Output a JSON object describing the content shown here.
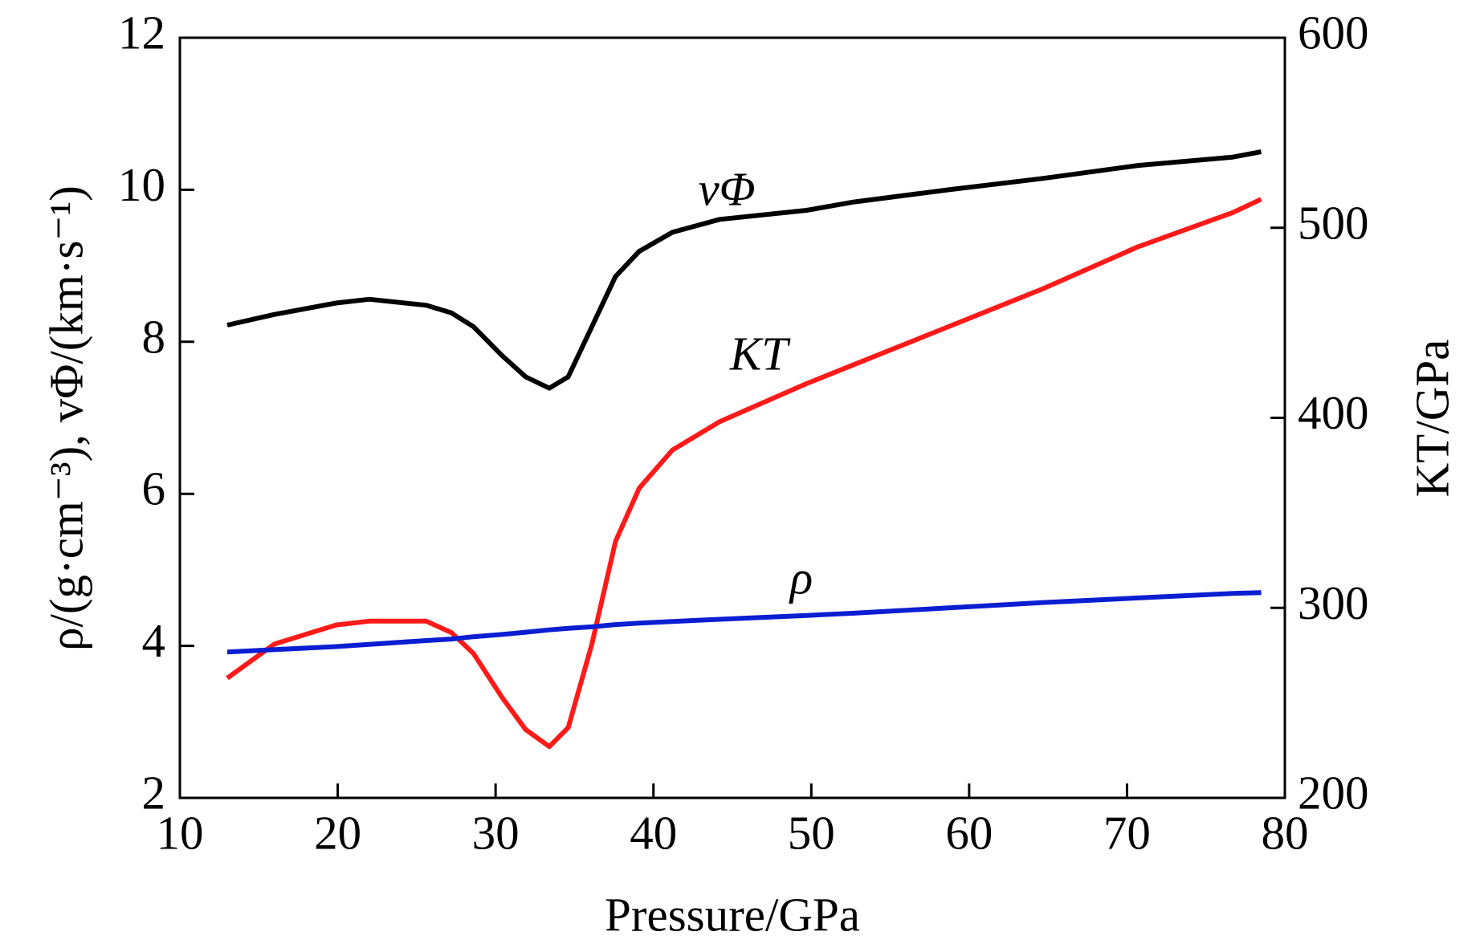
{
  "chart_data": {
    "type": "line",
    "xlabel": "Pressure/GPa",
    "ylabel": "ρ/(g·cm⁻³), vΦ/(km·s⁻¹)",
    "y2label": "KT/GPa",
    "x": [
      13,
      16,
      19.9,
      22,
      25.6,
      27.2,
      28.6,
      30.4,
      31.9,
      33.4,
      34.6,
      36.1,
      37.6,
      39.1,
      41.2,
      44.2,
      49.7,
      52.7,
      58.7,
      64.7,
      70.7,
      76.7,
      78.5
    ],
    "series": [
      {
        "name": "vΦ",
        "color": "#000000",
        "values": [
          8.22,
          8.36,
          8.51,
          8.56,
          8.48,
          8.38,
          8.2,
          7.82,
          7.54,
          7.39,
          7.54,
          8.2,
          8.86,
          9.19,
          9.44,
          9.61,
          9.73,
          9.84,
          10.0,
          10.15,
          10.32,
          10.43,
          10.5
        ]
      },
      {
        "name": "KT",
        "color": "#ff1a1a",
        "axis": "y2",
        "values": [
          263,
          281,
          291,
          293,
          293,
          287,
          276,
          253,
          236,
          227,
          237,
          281,
          335,
          363,
          383,
          398,
          418,
          428,
          448,
          468,
          490,
          508,
          515
        ]
      },
      {
        "name": "ρ",
        "color": "#0a1ed2",
        "values": [
          3.92,
          3.95,
          3.99,
          4.02,
          4.07,
          4.09,
          4.12,
          4.15,
          4.18,
          4.21,
          4.23,
          4.25,
          4.28,
          4.3,
          4.32,
          4.35,
          4.4,
          4.43,
          4.5,
          4.57,
          4.63,
          4.69,
          4.7
        ]
      }
    ],
    "xlim": [
      10,
      80
    ],
    "xticks": [
      10,
      20,
      30,
      40,
      50,
      60,
      70,
      80
    ],
    "ylim": [
      2,
      12
    ],
    "yticks": [
      2,
      4,
      6,
      8,
      10,
      12
    ],
    "y2lim": [
      200,
      600
    ],
    "y2ticks": [
      200,
      300,
      400,
      500,
      600
    ]
  }
}
